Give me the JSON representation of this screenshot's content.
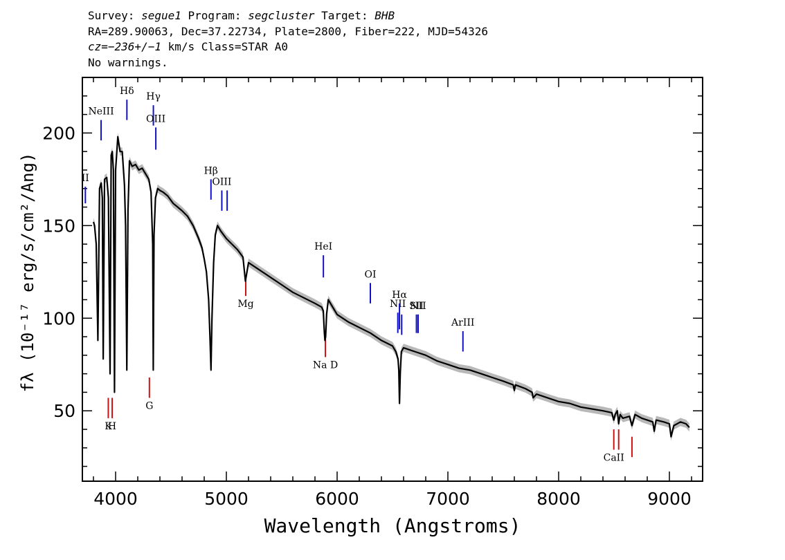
{
  "header": {
    "line1": {
      "survey_label": "Survey: ",
      "survey": "segue1",
      "program_label": " Program: ",
      "program": "segcluster",
      "target_label": " Target: ",
      "target": "BHB"
    },
    "line2": "RA=289.90063, Dec=37.22734, Plate=2800, Fiber=222, MJD=54326",
    "line3": {
      "cz": "cz=−236+/−1",
      "rest": " km/s Class=STAR A0"
    },
    "line4": "No warnings."
  },
  "colors": {
    "spectrum": "#000000",
    "error_band": "#b8b8b8",
    "emission": "#1010c8",
    "absorption": "#d01010"
  },
  "chart_data": {
    "type": "line",
    "title": "",
    "xlabel": "Wavelength (Angstroms)",
    "ylabel": "fλ (10⁻¹⁷ erg/s/cm²/Ang)",
    "xlim": [
      3700,
      9300
    ],
    "ylim": [
      12,
      230
    ],
    "x_ticks": [
      4000,
      5000,
      6000,
      7000,
      8000,
      9000
    ],
    "y_ticks": [
      50,
      100,
      150,
      200
    ],
    "grid": false,
    "legend": "none",
    "series": [
      {
        "x": [
          3800,
          3810,
          3825,
          3840,
          3855,
          3870,
          3880,
          3888,
          3900,
          3920,
          3935,
          3950,
          3960,
          3970,
          3980,
          3990,
          4000,
          4020,
          4040,
          4060,
          4080,
          4090,
          4101,
          4112,
          4125,
          4150,
          4180,
          4210,
          4240,
          4270,
          4300,
          4320,
          4335,
          4340,
          4347,
          4360,
          4380,
          4400,
          4430,
          4470,
          4520,
          4560,
          4600,
          4650,
          4700,
          4750,
          4780,
          4800,
          4820,
          4840,
          4852,
          4861,
          4870,
          4885,
          4900,
          4920,
          4950,
          5000,
          5050,
          5100,
          5150,
          5172,
          5200,
          5300,
          5400,
          5500,
          5600,
          5700,
          5800,
          5860,
          5875,
          5885,
          5890,
          5896,
          5905,
          5920,
          6000,
          6100,
          6200,
          6300,
          6400,
          6500,
          6530,
          6550,
          6557,
          6563,
          6570,
          6580,
          6600,
          6700,
          6800,
          6900,
          7000,
          7100,
          7200,
          7300,
          7400,
          7500,
          7590,
          7600,
          7610,
          7700,
          7760,
          7770,
          7800,
          7900,
          8000,
          8100,
          8200,
          8300,
          8400,
          8480,
          8498,
          8510,
          8530,
          8542,
          8555,
          8580,
          8640,
          8662,
          8690,
          8750,
          8800,
          8850,
          8863,
          8880,
          8950,
          9000,
          9015,
          9040,
          9100,
          9150,
          9180
        ],
        "y": [
          152,
          150,
          140,
          88,
          170,
          173,
          165,
          78,
          175,
          176,
          165,
          70,
          188,
          190,
          180,
          60,
          180,
          198,
          190,
          190,
          172,
          150,
          72,
          158,
          185,
          182,
          183,
          180,
          181,
          178,
          175,
          168,
          140,
          72,
          145,
          165,
          170,
          169,
          168,
          166,
          162,
          160,
          158,
          155,
          150,
          143,
          138,
          132,
          125,
          110,
          90,
          72,
          100,
          130,
          145,
          150,
          147,
          143,
          140,
          137,
          133,
          120,
          130,
          126,
          122,
          118,
          114,
          111,
          108,
          106,
          104,
          92,
          88,
          90,
          102,
          110,
          102,
          98,
          95,
          92,
          88,
          85,
          82,
          78,
          72,
          54,
          70,
          82,
          84,
          82,
          80,
          77,
          75,
          73,
          72,
          70,
          68,
          66,
          64,
          61,
          64,
          62,
          60,
          57,
          59,
          57,
          55,
          54,
          52,
          51,
          50,
          49,
          45,
          48,
          50,
          43,
          48,
          46,
          47,
          42,
          48,
          46,
          45,
          44,
          39,
          45,
          44,
          43,
          36,
          42,
          44,
          43,
          41
        ]
      }
    ],
    "emission_lines": [
      {
        "label": "II",
        "x": 3727,
        "y_top": 171,
        "y_bottom": 162
      },
      {
        "label": "NeIII",
        "x": 3869,
        "y_top": 207,
        "y_bottom": 196
      },
      {
        "label": "Hδ",
        "x": 4102,
        "y_top": 218,
        "y_bottom": 207
      },
      {
        "label": "Hγ",
        "x": 4341,
        "y_top": 215,
        "y_bottom": 204
      },
      {
        "label": "OIII",
        "x": 4363,
        "y_top": 203,
        "y_bottom": 191
      },
      {
        "label": "Hβ",
        "x": 4861,
        "y_top": 175,
        "y_bottom": 164
      },
      {
        "label": "OIII",
        "x": 4959,
        "y_top": 169,
        "y_bottom": 158
      },
      {
        "label": "",
        "x": 5007,
        "y_top": 169,
        "y_bottom": 158
      },
      {
        "label": "HeI",
        "x": 5876,
        "y_top": 134,
        "y_bottom": 122
      },
      {
        "label": "OI",
        "x": 6300,
        "y_top": 119,
        "y_bottom": 108
      },
      {
        "label": "NII",
        "x": 6548,
        "y_top": 103,
        "y_bottom": 92
      },
      {
        "label": "Hα",
        "x": 6563,
        "y_top": 108,
        "y_bottom": 94
      },
      {
        "label": "",
        "x": 6583,
        "y_top": 102,
        "y_bottom": 91
      },
      {
        "label": "SII",
        "x": 6716,
        "y_top": 102,
        "y_bottom": 92
      },
      {
        "label": "",
        "x": 6731,
        "y_top": 102,
        "y_bottom": 92
      },
      {
        "label": "NII",
        "x": 6731,
        "y_top": 102,
        "y_bottom": 92
      },
      {
        "label": "ArIII",
        "x": 7136,
        "y_top": 93,
        "y_bottom": 82
      }
    ],
    "absorption_lines": [
      {
        "label": "K",
        "x": 3934,
        "y_top": 57,
        "y_bottom": 46
      },
      {
        "label": "H",
        "x": 3969,
        "y_top": 57,
        "y_bottom": 46
      },
      {
        "label": "G",
        "x": 4305,
        "y_top": 68,
        "y_bottom": 57
      },
      {
        "label": "Mg",
        "x": 5175,
        "y_top": 123,
        "y_bottom": 112
      },
      {
        "label": "Na D",
        "x": 5894,
        "y_top": 90,
        "y_bottom": 79
      },
      {
        "label": "CaII",
        "x": 8498,
        "y_top": 40,
        "y_bottom": 29
      },
      {
        "label": "",
        "x": 8542,
        "y_top": 40,
        "y_bottom": 29
      },
      {
        "label": "",
        "x": 8662,
        "y_top": 36,
        "y_bottom": 25
      }
    ]
  }
}
